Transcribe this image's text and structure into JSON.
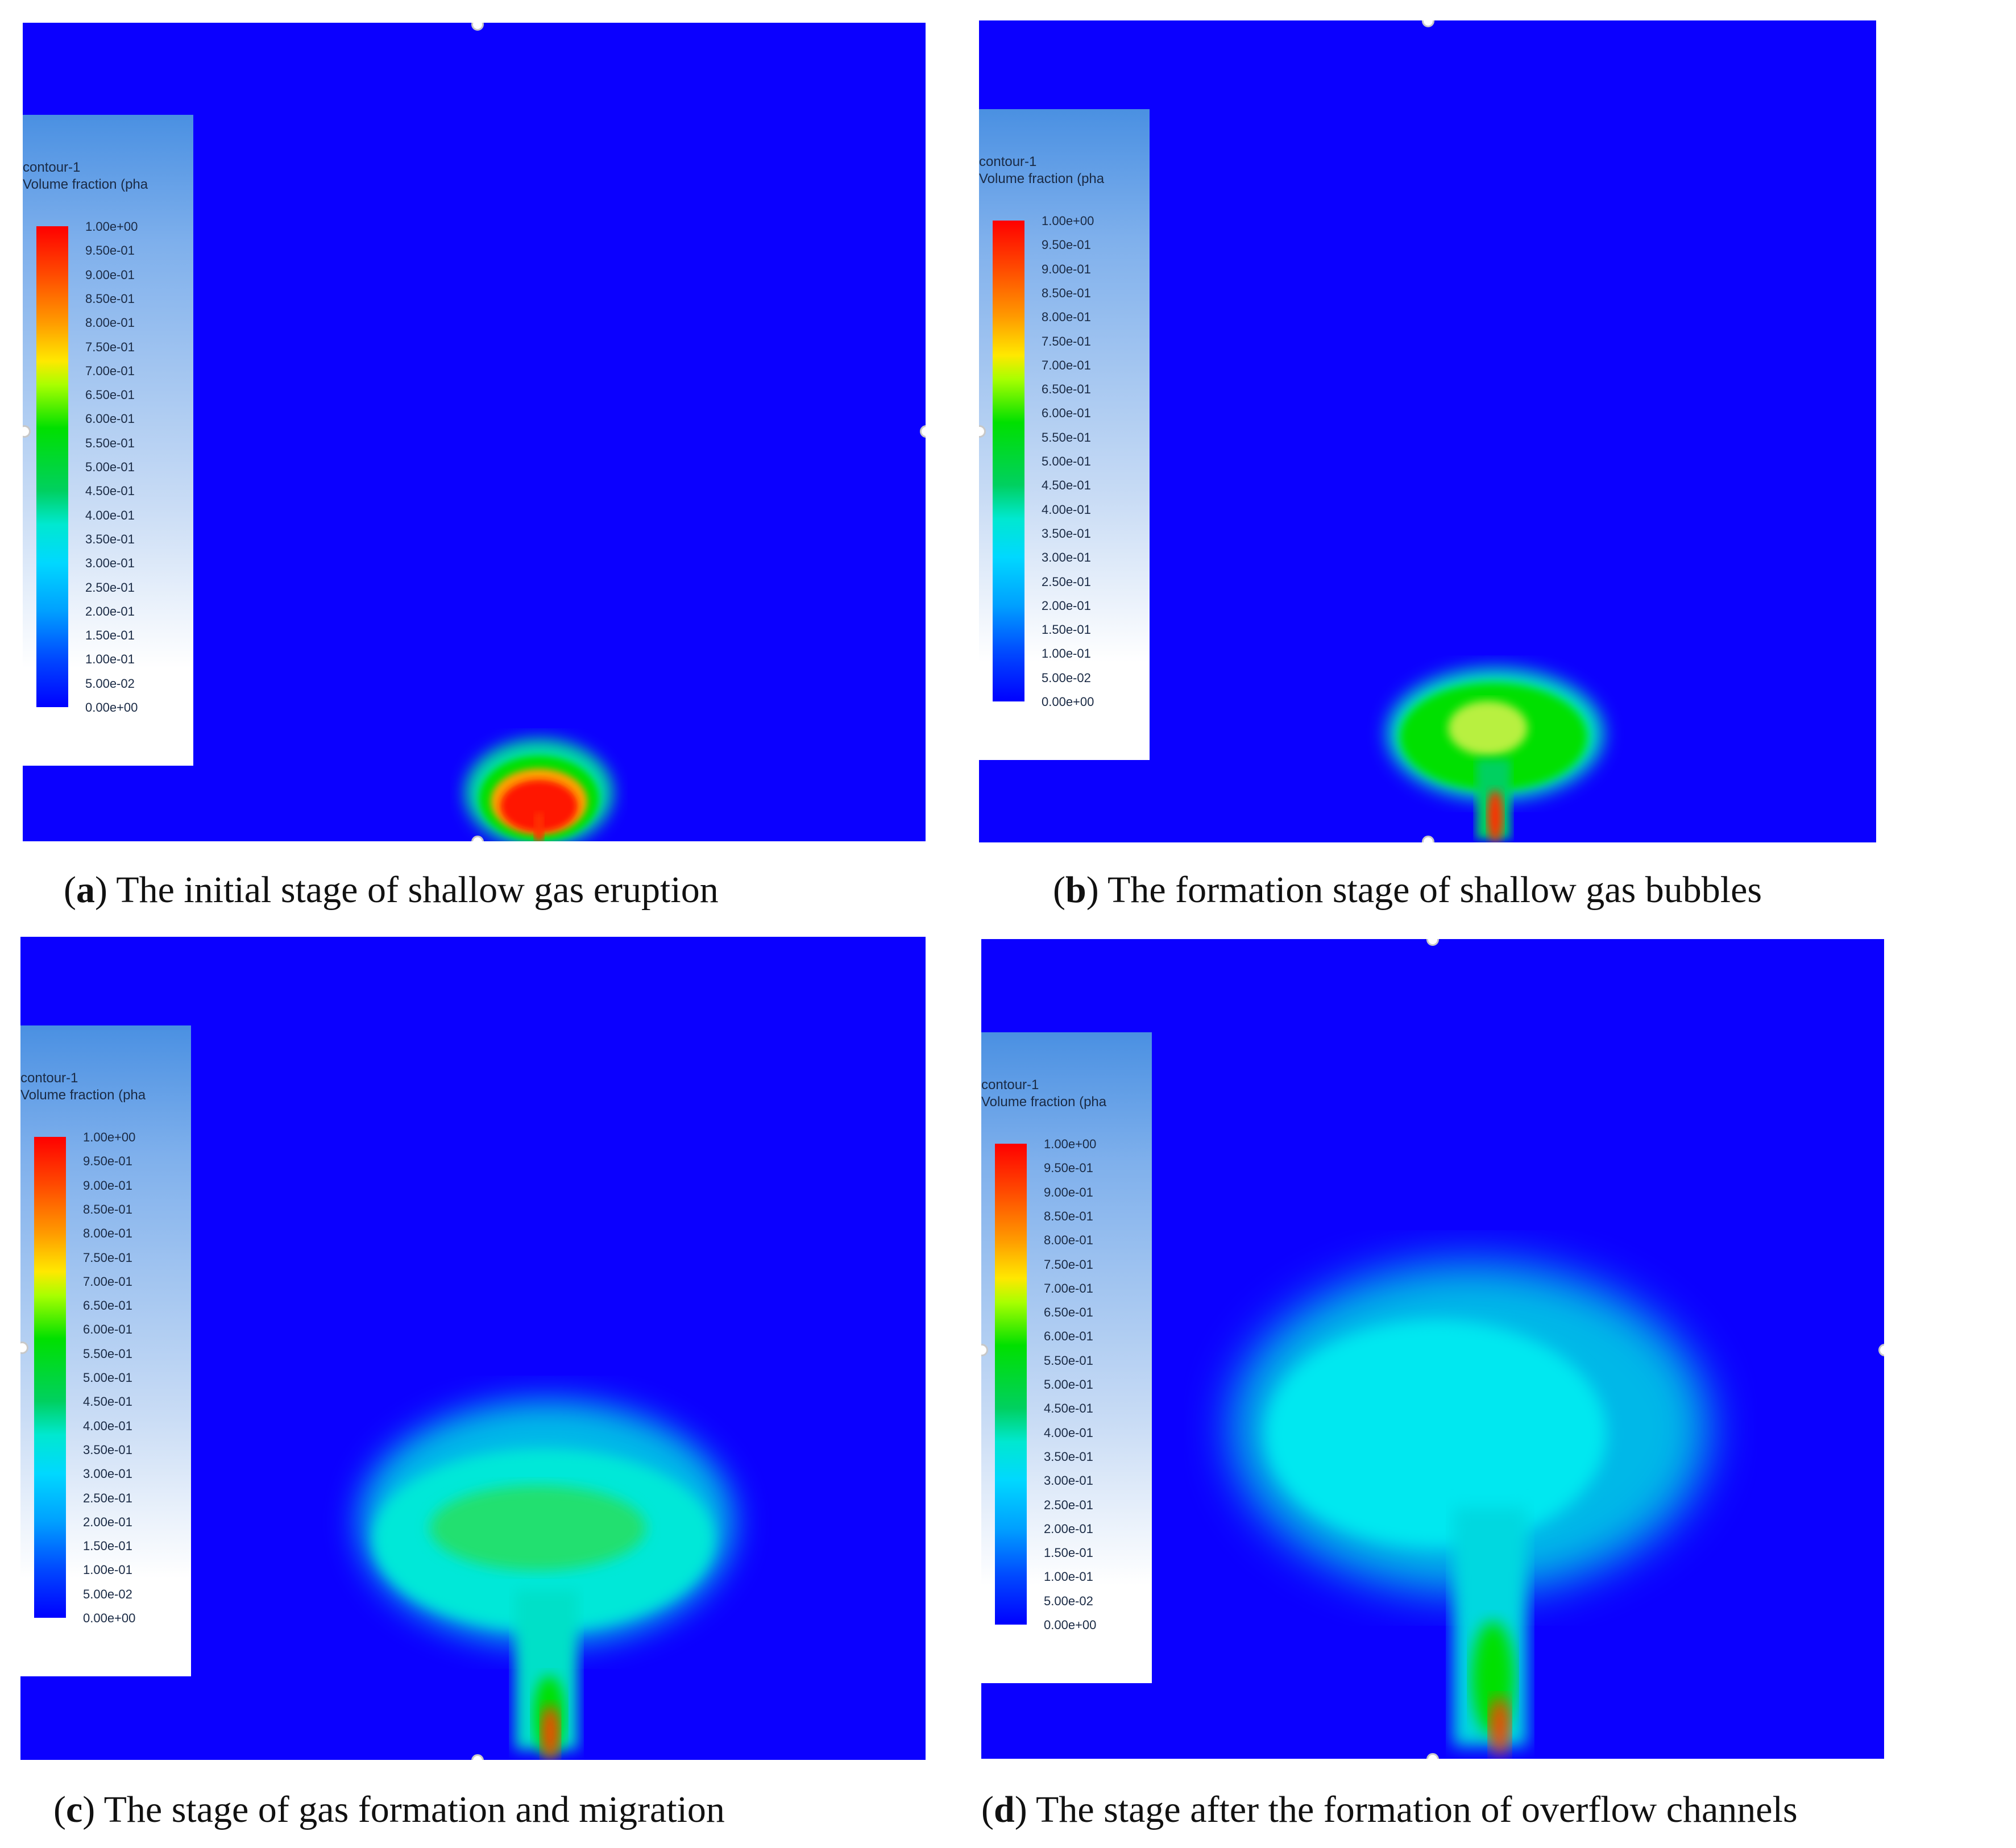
{
  "legend": {
    "title_line1": "contour-1",
    "title_line2": "Volume fraction (pha",
    "ticks": [
      "1.00e+00",
      "9.50e-01",
      "9.00e-01",
      "8.50e-01",
      "8.00e-01",
      "7.50e-01",
      "7.00e-01",
      "6.50e-01",
      "6.00e-01",
      "5.50e-01",
      "5.00e-01",
      "4.50e-01",
      "4.00e-01",
      "3.50e-01",
      "3.00e-01",
      "2.50e-01",
      "2.00e-01",
      "1.50e-01",
      "1.00e-01",
      "5.00e-02",
      "0.00e+00"
    ]
  },
  "panels": [
    {
      "letter": "a",
      "caption": "The initial stage of shallow gas eruption"
    },
    {
      "letter": "b",
      "caption": "The formation stage of shallow gas bubbles"
    },
    {
      "letter": "c",
      "caption": "The stage of gas formation and migration"
    },
    {
      "letter": "d",
      "caption": "The stage after the formation of overflow channels"
    }
  ],
  "colors": {
    "background": "#0b00ff",
    "max": "#ff0000",
    "mid": "#00e000",
    "low": "#00e8ff"
  }
}
